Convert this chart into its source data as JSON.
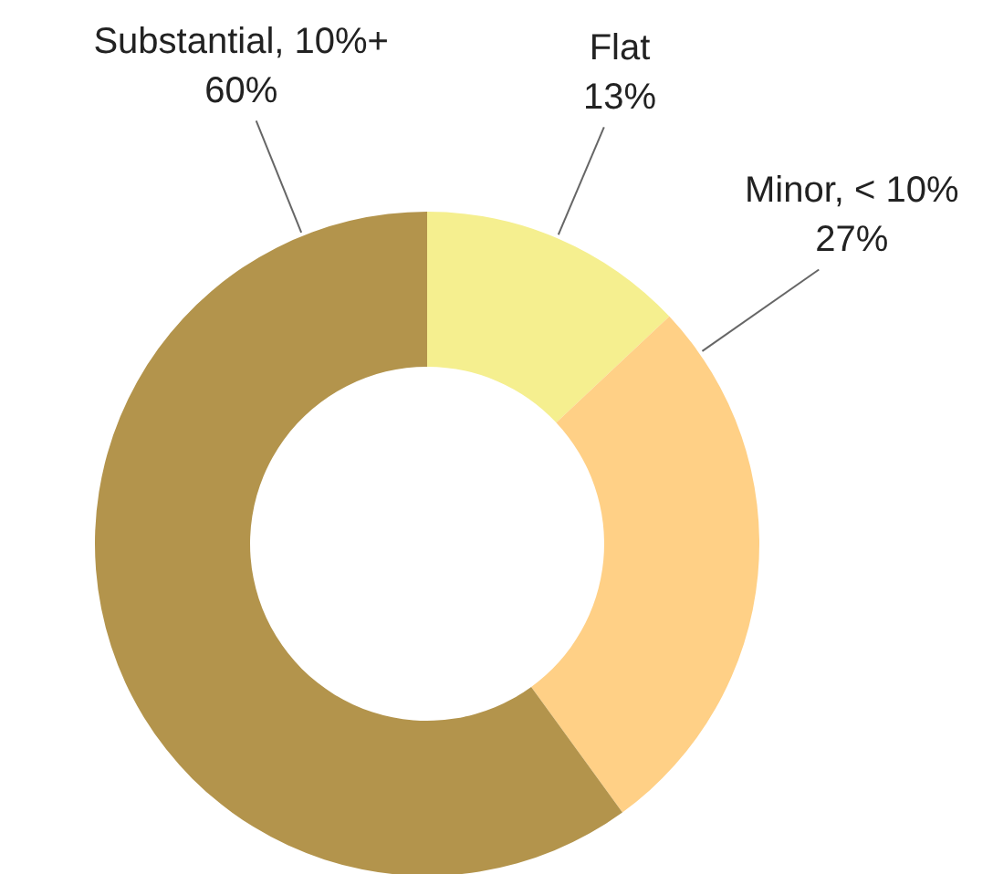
{
  "chart_data": {
    "type": "donut",
    "categories": [
      "Flat",
      "Minor, < 10%",
      "Substantial, 10%+"
    ],
    "values": [
      13,
      27,
      60
    ],
    "colors": [
      "#f5ef8f",
      "#ffd086",
      "#b3944c"
    ],
    "value_labels": [
      "13%",
      "27%",
      "60%"
    ]
  }
}
